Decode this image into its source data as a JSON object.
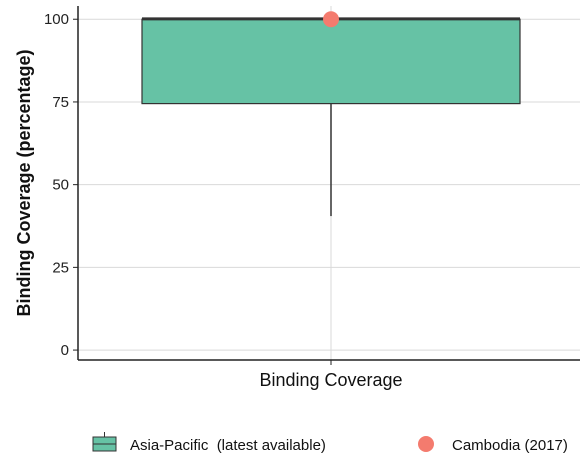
{
  "chart_data": {
    "type": "box",
    "title": "",
    "xlabel": "Binding Coverage",
    "ylabel": "Binding Coverage (percentage)",
    "ylim": [
      -3,
      104
    ],
    "yticks": [
      0,
      25,
      50,
      75,
      100
    ],
    "categories": [
      "Binding Coverage"
    ],
    "grid": true,
    "legend_position": "bottom",
    "box": {
      "name": "Asia-Pacific  (latest available)",
      "min": 40.5,
      "q1": 74.5,
      "median": 99.5,
      "q3": 99.5,
      "max": 100,
      "color": "#66c2a5"
    },
    "point": {
      "name": "Cambodia (2017)",
      "value": 100,
      "color": "#f47b6e"
    }
  }
}
